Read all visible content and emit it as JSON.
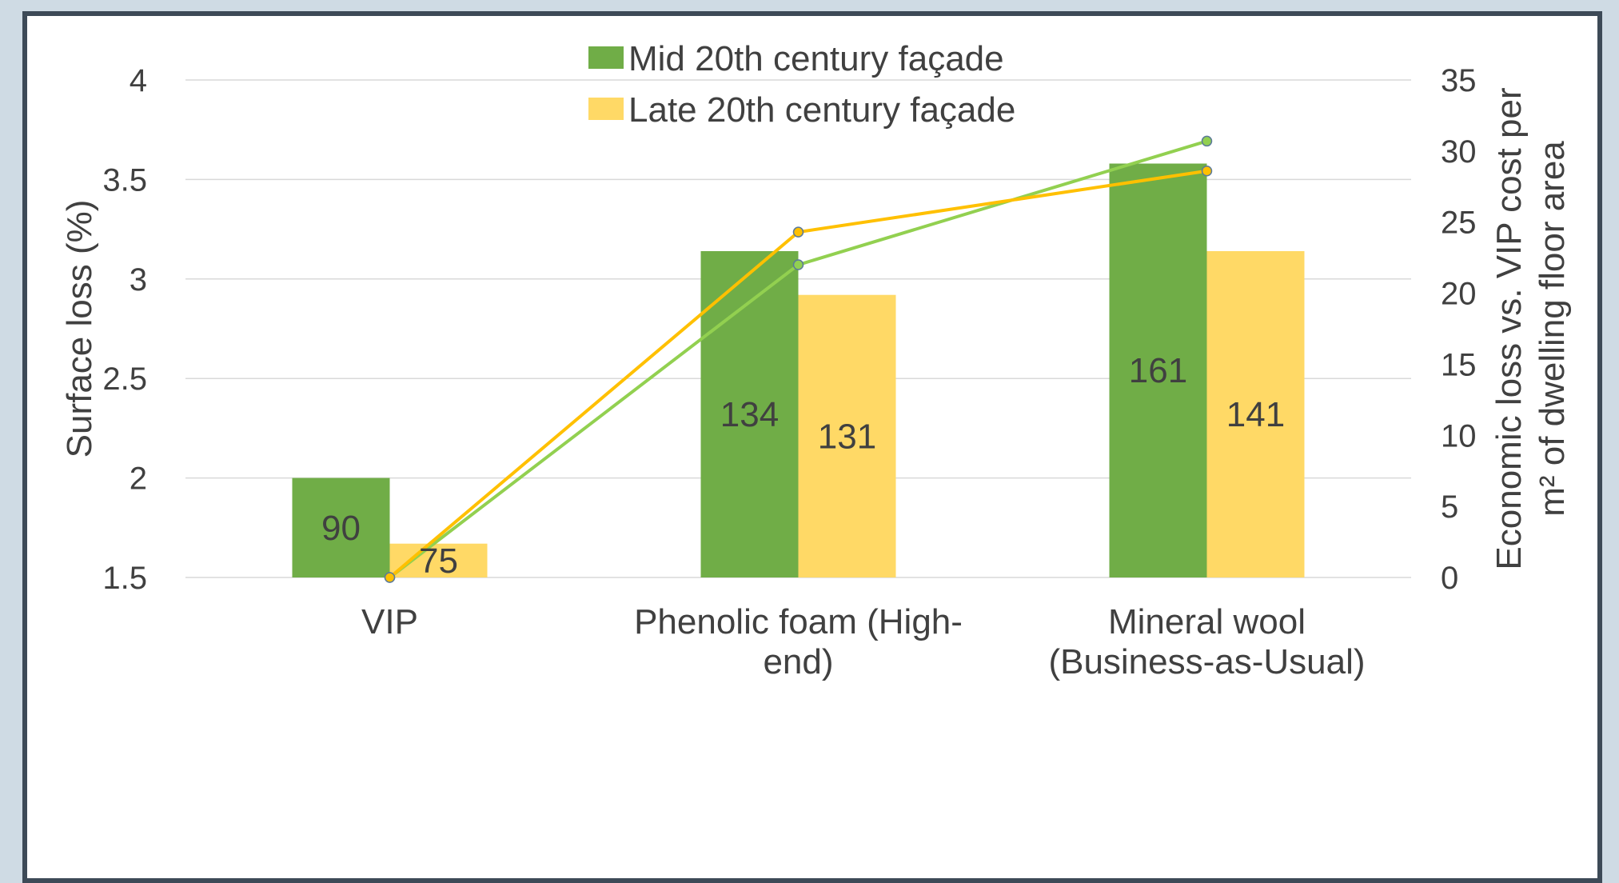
{
  "chart_data": {
    "type": "bar",
    "categories": [
      [
        "VIP"
      ],
      [
        "Phenolic foam (High-",
        "end)"
      ],
      [
        "Mineral wool",
        "(Business-as-Usual)"
      ]
    ],
    "series": [
      {
        "name": "Mid 20th century façade",
        "color": "#70ad47",
        "values": [
          2.0,
          3.14,
          3.58
        ],
        "labels": [
          "90",
          "134",
          "161"
        ]
      },
      {
        "name": "Late 20th century façade",
        "color": "#ffd966",
        "values": [
          1.67,
          2.92,
          3.14
        ],
        "labels": [
          "75",
          "131",
          "141"
        ]
      }
    ],
    "lines": [
      {
        "series": "Mid 20th century façade",
        "axis": "right",
        "color": "#92d050",
        "values": [
          0,
          22.0,
          30.7
        ]
      },
      {
        "series": "Late 20th century façade",
        "axis": "right",
        "color": "#ffc000",
        "values": [
          0,
          24.3,
          28.6
        ]
      }
    ],
    "ylabel": "Surface loss (%)",
    "ylim": [
      1.5,
      4
    ],
    "yticks": [
      "1.5",
      "2",
      "2.5",
      "3",
      "3.5",
      "4"
    ],
    "y2label": [
      "Economic loss vs. VIP cost per",
      "m² of dwelling floor area"
    ],
    "y2lim": [
      0,
      35
    ],
    "y2ticks": [
      "0",
      "5",
      "10",
      "15",
      "20",
      "25",
      "30",
      "35"
    ],
    "legend_position": "top-center",
    "grid": true
  }
}
